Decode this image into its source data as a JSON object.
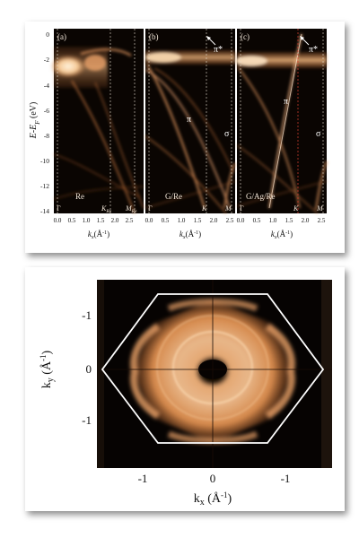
{
  "top_figure": {
    "y_axis_label": "E-E",
    "y_axis_label_sub": "F",
    "y_axis_unit": " (eV)",
    "y_ticks": [
      "0",
      "-2",
      "-4",
      "-6",
      "-8",
      "-10",
      "-12",
      "-14"
    ],
    "panels": [
      {
        "id": "a",
        "tag": "(a)",
        "sample": "Re",
        "k_labels": [
          {
            "main": "Γ",
            "sub": ""
          },
          {
            "main": "K",
            "sub": "Re"
          },
          {
            "main": "M",
            "sub": "Re"
          }
        ],
        "band_labels": []
      },
      {
        "id": "b",
        "tag": "(b)",
        "sample": "G/Re",
        "k_labels": [
          {
            "main": "Γ",
            "sub": ""
          },
          {
            "main": "K",
            "sub": ""
          },
          {
            "main": "M",
            "sub": ""
          }
        ],
        "band_labels": [
          "π*",
          "π",
          "σ"
        ]
      },
      {
        "id": "c",
        "tag": "(c)",
        "sample": "G/Ag/Re",
        "k_labels": [
          {
            "main": "Γ",
            "sub": ""
          },
          {
            "main": "K",
            "sub": ""
          },
          {
            "main": "M",
            "sub": ""
          }
        ],
        "band_labels": [
          "π*",
          "π",
          "σ"
        ]
      }
    ],
    "x_ticks": [
      "0.0",
      "0.5",
      "1.0",
      "1.5",
      "2.0",
      "2.5"
    ],
    "x_axis_label_k": "k",
    "x_axis_label_sub": "x",
    "x_axis_label_unit": "(Å",
    "x_axis_label_exp": "-1",
    "x_axis_label_close": ")",
    "colors": {
      "background": "#0a0502",
      "band": "#c87840",
      "band_bright": "#f0c090",
      "guide_line": "#e8e0d0",
      "k_line_red": "#e04030"
    }
  },
  "bottom_figure": {
    "y_axis_label_k": "k",
    "y_axis_label_sub": "y",
    "y_axis_label_unit": " (Å",
    "y_axis_label_exp": "-1",
    "y_axis_label_close": ")",
    "x_axis_label_k": "k",
    "x_axis_label_sub": "x",
    "x_axis_label_unit": " (Å",
    "x_axis_label_exp": "-1",
    "x_axis_label_close": ")",
    "y_ticks": [
      "-1",
      "0",
      "-1"
    ],
    "x_ticks": [
      "-1",
      "0",
      "-1"
    ],
    "colors": {
      "background": "#060302",
      "intensity": "#e0904a",
      "intensity_bright": "#ffd0a0",
      "zone_boundary": "#ffffff"
    }
  }
}
